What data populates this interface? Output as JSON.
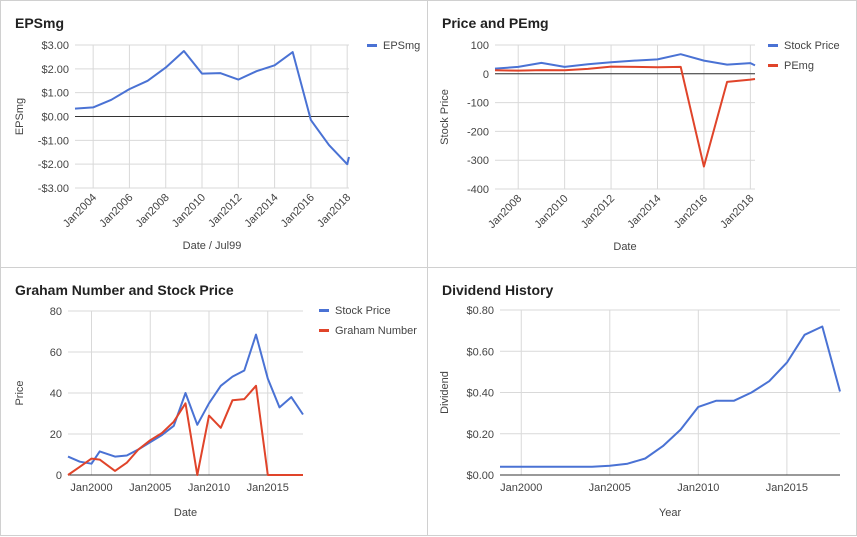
{
  "colors": {
    "blue": "#4a72d4",
    "red": "#e0442a",
    "grid": "#d9d9d9",
    "axis": "#333333",
    "text": "#444444"
  },
  "chart_data": [
    {
      "type": "line",
      "title": "EPSmg",
      "xlabel": "Date / Jul99",
      "ylabel": "EPSmg",
      "x_tick_labels": [
        "Jan2004",
        "Jan2006",
        "Jan2008",
        "Jan2010",
        "Jan2012",
        "Jan2014",
        "Jan2016",
        "Jan2018"
      ],
      "x_tick_years": [
        2004,
        2006,
        2008,
        2010,
        2012,
        2014,
        2016,
        2018
      ],
      "xlim": [
        2003,
        2018.1
      ],
      "ylim": [
        -3,
        3
      ],
      "y_tick_values": [
        3,
        2,
        1,
        0,
        -1,
        -2,
        -3
      ],
      "y_tick_labels": [
        "$3.00",
        "$2.00",
        "$1.00",
        "$0.00",
        "-$1.00",
        "-$2.00",
        "-$3.00"
      ],
      "legend_position": "right",
      "series": [
        {
          "name": "EPSmg",
          "color": "#4a72d4",
          "x": [
            2003,
            2004,
            2005,
            2006,
            2007,
            2008,
            2009,
            2010,
            2011,
            2012,
            2013,
            2014,
            2015,
            2016,
            2017,
            2018,
            2018.1
          ],
          "y": [
            0.33,
            0.38,
            0.7,
            1.15,
            1.5,
            2.05,
            2.75,
            1.8,
            1.82,
            1.55,
            1.9,
            2.15,
            2.7,
            -0.15,
            -1.2,
            -2.0,
            -1.7
          ]
        }
      ]
    },
    {
      "type": "line",
      "title": "Price and PEmg",
      "xlabel": "Date",
      "ylabel": "Stock Price",
      "x_tick_labels": [
        "Jan2008",
        "Jan2010",
        "Jan2012",
        "Jan2014",
        "Jan2016",
        "Jan2018"
      ],
      "x_tick_years": [
        2008,
        2010,
        2012,
        2014,
        2016,
        2018
      ],
      "xlim": [
        2007,
        2018.2
      ],
      "ylim": [
        -400,
        100
      ],
      "y_tick_values": [
        100,
        0,
        -100,
        -200,
        -300,
        -400
      ],
      "y_tick_labels": [
        "100",
        "0",
        "-100",
        "-200",
        "-300",
        "-400"
      ],
      "legend_position": "right",
      "series": [
        {
          "name": "Stock Price",
          "color": "#4a72d4",
          "x": [
            2007,
            2008,
            2009,
            2010,
            2011,
            2012,
            2013,
            2014,
            2015,
            2016,
            2017,
            2018,
            2018.2
          ],
          "y": [
            18,
            24,
            38,
            24,
            33,
            40,
            46,
            50,
            68,
            46,
            32,
            37,
            29
          ]
        },
        {
          "name": "PEmg",
          "color": "#e0442a",
          "x": [
            2007,
            2008,
            2009,
            2010,
            2011,
            2012,
            2013,
            2014,
            2015,
            2016,
            2017,
            2018,
            2018.2
          ],
          "y": [
            12,
            11,
            13,
            12,
            17,
            25,
            24,
            23,
            24,
            -322,
            -28,
            -20,
            -18
          ]
        }
      ]
    },
    {
      "type": "line",
      "title": "Graham Number and Stock Price",
      "xlabel": "Date",
      "ylabel": "Price",
      "x_tick_labels": [
        "Jan2000",
        "Jan2005",
        "Jan2010",
        "Jan2015"
      ],
      "x_tick_years": [
        2000,
        2005,
        2010,
        2015
      ],
      "xlim": [
        1998,
        2018
      ],
      "ylim": [
        0,
        80
      ],
      "y_tick_values": [
        80,
        60,
        40,
        20,
        0
      ],
      "y_tick_labels": [
        "80",
        "60",
        "40",
        "20",
        "0"
      ],
      "legend_position": "right",
      "series": [
        {
          "name": "Stock Price",
          "color": "#4a72d4",
          "x": [
            1998,
            1999,
            2000,
            2000.7,
            2002,
            2003,
            2004,
            2005,
            2006,
            2007,
            2008,
            2009,
            2010,
            2011,
            2012,
            2013,
            2014,
            2015,
            2016,
            2017,
            2018
          ],
          "y": [
            9,
            6.5,
            5.5,
            11.5,
            9,
            9.5,
            12.5,
            16,
            19.5,
            24,
            40,
            24.5,
            35,
            43.5,
            48,
            51,
            68.5,
            47,
            33,
            38,
            29.5
          ]
        },
        {
          "name": "Graham Number",
          "color": "#e0442a",
          "x": [
            1998,
            1999,
            2000,
            2000.7,
            2002,
            2003,
            2004,
            2005,
            2006,
            2007,
            2008,
            2009,
            2010,
            2011,
            2012,
            2013,
            2014,
            2015,
            2016,
            2017,
            2018
          ],
          "y": [
            0,
            4,
            8,
            7.5,
            2,
            6,
            12.5,
            17,
            20.5,
            26,
            35,
            0,
            29,
            23,
            36.5,
            37,
            43.5,
            0,
            0,
            0,
            0
          ]
        }
      ]
    },
    {
      "type": "line",
      "title": "Dividend History",
      "xlabel": "Year",
      "ylabel": "Dividend",
      "x_tick_labels": [
        "Jan2000",
        "Jan2005",
        "Jan2010",
        "Jan2015"
      ],
      "x_tick_years": [
        2000,
        2005,
        2010,
        2015
      ],
      "xlim": [
        1998.8,
        2018
      ],
      "ylim": [
        0,
        0.8
      ],
      "y_tick_values": [
        0.8,
        0.6,
        0.4,
        0.2,
        0
      ],
      "y_tick_labels": [
        "$0.80",
        "$0.60",
        "$0.40",
        "$0.20",
        "$0.00"
      ],
      "legend_position": "none",
      "series": [
        {
          "name": "Dividend",
          "color": "#4a72d4",
          "x": [
            1998.8,
            2000,
            2001,
            2002,
            2003,
            2004,
            2005,
            2006,
            2007,
            2008,
            2009,
            2010,
            2011,
            2012,
            2013,
            2014,
            2015,
            2016,
            2017,
            2018
          ],
          "y": [
            0.04,
            0.04,
            0.04,
            0.04,
            0.04,
            0.04,
            0.045,
            0.055,
            0.08,
            0.14,
            0.22,
            0.33,
            0.36,
            0.36,
            0.4,
            0.455,
            0.545,
            0.68,
            0.72,
            0.405
          ]
        }
      ]
    }
  ]
}
